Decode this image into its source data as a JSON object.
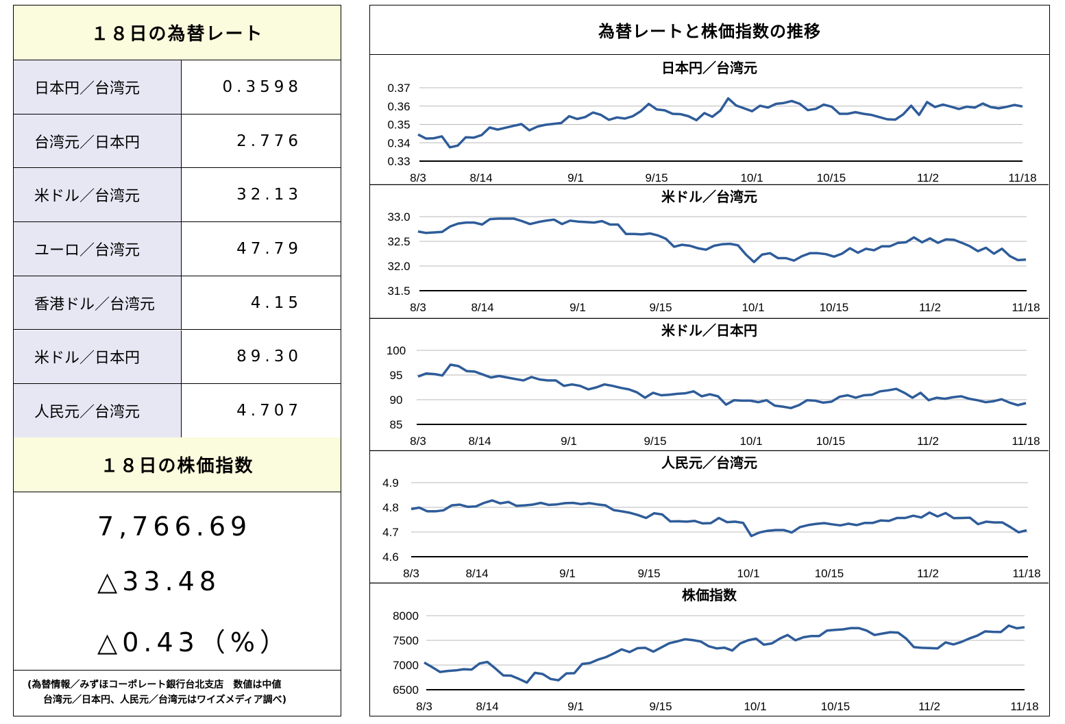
{
  "left_panel": {
    "rate_header": "１８日の為替レート",
    "rates": [
      {
        "label": "日本円／台湾元",
        "value": "0.3598"
      },
      {
        "label": "台湾元／日本円",
        "value": "2.776"
      },
      {
        "label": "米ドル／台湾元",
        "value": "32.13"
      },
      {
        "label": "ユーロ／台湾元",
        "value": "47.79"
      },
      {
        "label": "香港ドル／台湾元",
        "value": "4.15"
      },
      {
        "label": "米ドル／日本円",
        "value": "89.30"
      },
      {
        "label": "人民元／台湾元",
        "value": "4.707"
      }
    ],
    "stock_header": "１８日の株価指数",
    "stock_value": "7,766.69",
    "stock_change": "△33.48",
    "stock_change_pct": "△0.43（%）",
    "note_line1": "(為替情報／みずほコーポレート銀行台北支店　数値は中値",
    "note_line2": "台湾元／日本円、人民元／台湾元はワイズメディア調べ)"
  },
  "right_panel": {
    "header": "為替レートと株価指数の推移"
  },
  "line_color": "#2e5c99",
  "chart_data": [
    {
      "type": "line",
      "title": "日本円／台湾元",
      "x_tick_labels": [
        "8/3",
        "8/14",
        "9/1",
        "9/15",
        "10/1",
        "10/15",
        "11/2",
        "11/18"
      ],
      "y_tick_labels": [
        "0.37",
        "0.36",
        "0.35",
        "0.34",
        "0.33"
      ],
      "ylim": [
        0.33,
        0.37
      ],
      "values": [
        0.3445,
        0.3423,
        0.3425,
        0.3435,
        0.3375,
        0.3385,
        0.343,
        0.3428,
        0.3442,
        0.3483,
        0.3472,
        0.3482,
        0.3492,
        0.3502,
        0.3468,
        0.3488,
        0.3498,
        0.3503,
        0.3508,
        0.3545,
        0.353,
        0.354,
        0.3565,
        0.3552,
        0.3525,
        0.3538,
        0.3532,
        0.3545,
        0.3572,
        0.3612,
        0.3582,
        0.3577,
        0.3558,
        0.3556,
        0.3545,
        0.3523,
        0.3562,
        0.3542,
        0.3575,
        0.3642,
        0.3603,
        0.3588,
        0.3572,
        0.3602,
        0.3592,
        0.3612,
        0.3617,
        0.3628,
        0.3612,
        0.3578,
        0.3585,
        0.3608,
        0.3597,
        0.3558,
        0.3558,
        0.3567,
        0.3558,
        0.3552,
        0.354,
        0.3528,
        0.3526,
        0.3555,
        0.3602,
        0.3552,
        0.3622,
        0.3595,
        0.3608,
        0.3597,
        0.3584,
        0.3597,
        0.3592,
        0.3614,
        0.3595,
        0.3588,
        0.3596,
        0.3606,
        0.3598
      ]
    },
    {
      "type": "line",
      "title": "米ドル／台湾元",
      "x_tick_labels": [
        "8/3",
        "8/14",
        "9/1",
        "9/15",
        "10/1",
        "10/15",
        "11/2",
        "11/18"
      ],
      "y_tick_labels": [
        "33.0",
        "32.5",
        "32.0",
        "31.5"
      ],
      "ylim": [
        31.5,
        33.0
      ],
      "values": [
        32.7,
        32.67,
        32.68,
        32.69,
        32.8,
        32.86,
        32.88,
        32.88,
        32.84,
        32.95,
        32.96,
        32.96,
        32.96,
        32.91,
        32.85,
        32.89,
        32.92,
        32.94,
        32.85,
        32.92,
        32.9,
        32.89,
        32.88,
        32.91,
        32.84,
        32.84,
        32.65,
        32.65,
        32.64,
        32.66,
        32.62,
        32.55,
        32.39,
        32.43,
        32.41,
        32.36,
        32.33,
        32.41,
        32.44,
        32.45,
        32.42,
        32.23,
        32.08,
        32.23,
        32.26,
        32.16,
        32.16,
        32.11,
        32.2,
        32.26,
        32.26,
        32.24,
        32.19,
        32.25,
        32.36,
        32.27,
        32.35,
        32.32,
        32.4,
        32.4,
        32.47,
        32.48,
        32.58,
        32.48,
        32.56,
        32.47,
        32.54,
        32.53,
        32.47,
        32.4,
        32.3,
        32.37,
        32.25,
        32.35,
        32.2,
        32.12,
        32.13
      ]
    },
    {
      "type": "line",
      "title": "米ドル／日本円",
      "x_tick_labels": [
        "8/3",
        "8/14",
        "9/1",
        "9/15",
        "10/1",
        "10/15",
        "11/2",
        "11/18"
      ],
      "y_tick_labels": [
        "100",
        "95",
        "90",
        "85"
      ],
      "ylim": [
        85,
        100
      ],
      "values": [
        94.7,
        95.3,
        95.2,
        94.9,
        97.1,
        96.8,
        95.8,
        95.7,
        95.1,
        94.5,
        94.8,
        94.5,
        94.2,
        93.9,
        94.6,
        94.1,
        93.9,
        93.9,
        92.8,
        93.1,
        92.8,
        92.1,
        92.5,
        93.1,
        92.8,
        92.4,
        92.1,
        91.5,
        90.4,
        91.4,
        90.9,
        91.0,
        91.2,
        91.3,
        91.7,
        90.7,
        91.1,
        90.7,
        89.0,
        89.9,
        89.8,
        89.8,
        89.5,
        89.9,
        88.8,
        88.6,
        88.3,
        88.9,
        89.9,
        89.8,
        89.4,
        89.6,
        90.6,
        90.9,
        90.4,
        90.9,
        91.0,
        91.7,
        91.9,
        92.2,
        91.4,
        90.4,
        91.4,
        89.9,
        90.4,
        90.2,
        90.5,
        90.7,
        90.2,
        89.9,
        89.5,
        89.7,
        90.1,
        89.4,
        88.9,
        89.3
      ]
    },
    {
      "type": "line",
      "title": "人民元／台湾元",
      "x_tick_labels": [
        "8/3",
        "8/14",
        "9/1",
        "9/15",
        "10/1",
        "10/15",
        "11/2",
        "11/18"
      ],
      "y_tick_labels": [
        "4.9",
        "4.8",
        "4.7",
        "4.6"
      ],
      "ylim": [
        4.6,
        4.9
      ],
      "values": [
        4.793,
        4.799,
        4.784,
        4.784,
        4.788,
        4.808,
        4.811,
        4.802,
        4.804,
        4.818,
        4.828,
        4.816,
        4.822,
        4.806,
        4.808,
        4.811,
        4.818,
        4.81,
        4.812,
        4.817,
        4.818,
        4.813,
        4.817,
        4.812,
        4.808,
        4.789,
        4.784,
        4.778,
        4.769,
        4.757,
        4.776,
        4.771,
        4.743,
        4.744,
        4.742,
        4.745,
        4.735,
        4.736,
        4.757,
        4.74,
        4.742,
        4.737,
        4.684,
        4.698,
        4.705,
        4.708,
        4.708,
        4.698,
        4.72,
        4.728,
        4.733,
        4.736,
        4.731,
        4.727,
        4.734,
        4.728,
        4.737,
        4.737,
        4.747,
        4.745,
        4.757,
        4.757,
        4.766,
        4.759,
        4.779,
        4.763,
        4.777,
        4.756,
        4.757,
        4.758,
        4.732,
        4.742,
        4.739,
        4.739,
        4.72,
        4.699,
        4.707
      ]
    },
    {
      "type": "line",
      "title": "株価指数",
      "x_tick_labels": [
        "8/3",
        "8/14",
        "9/1",
        "9/15",
        "10/1",
        "10/15",
        "11/2",
        "11/18"
      ],
      "y_tick_labels": [
        "8000",
        "7500",
        "7000",
        "6500"
      ],
      "ylim": [
        6500,
        8000
      ],
      "values": [
        7050,
        6958,
        6860,
        6880,
        6892,
        6915,
        6908,
        7032,
        7062,
        6932,
        6790,
        6785,
        6718,
        6645,
        6842,
        6818,
        6718,
        6692,
        6830,
        6835,
        7022,
        7042,
        7110,
        7160,
        7235,
        7318,
        7262,
        7342,
        7348,
        7272,
        7355,
        7440,
        7478,
        7522,
        7505,
        7478,
        7382,
        7338,
        7352,
        7295,
        7438,
        7502,
        7535,
        7412,
        7438,
        7535,
        7608,
        7502,
        7562,
        7588,
        7588,
        7698,
        7712,
        7722,
        7748,
        7748,
        7698,
        7608,
        7638,
        7665,
        7655,
        7538,
        7362,
        7348,
        7345,
        7338,
        7458,
        7418,
        7468,
        7538,
        7595,
        7682,
        7672,
        7668,
        7798,
        7745,
        7766.69
      ]
    }
  ]
}
